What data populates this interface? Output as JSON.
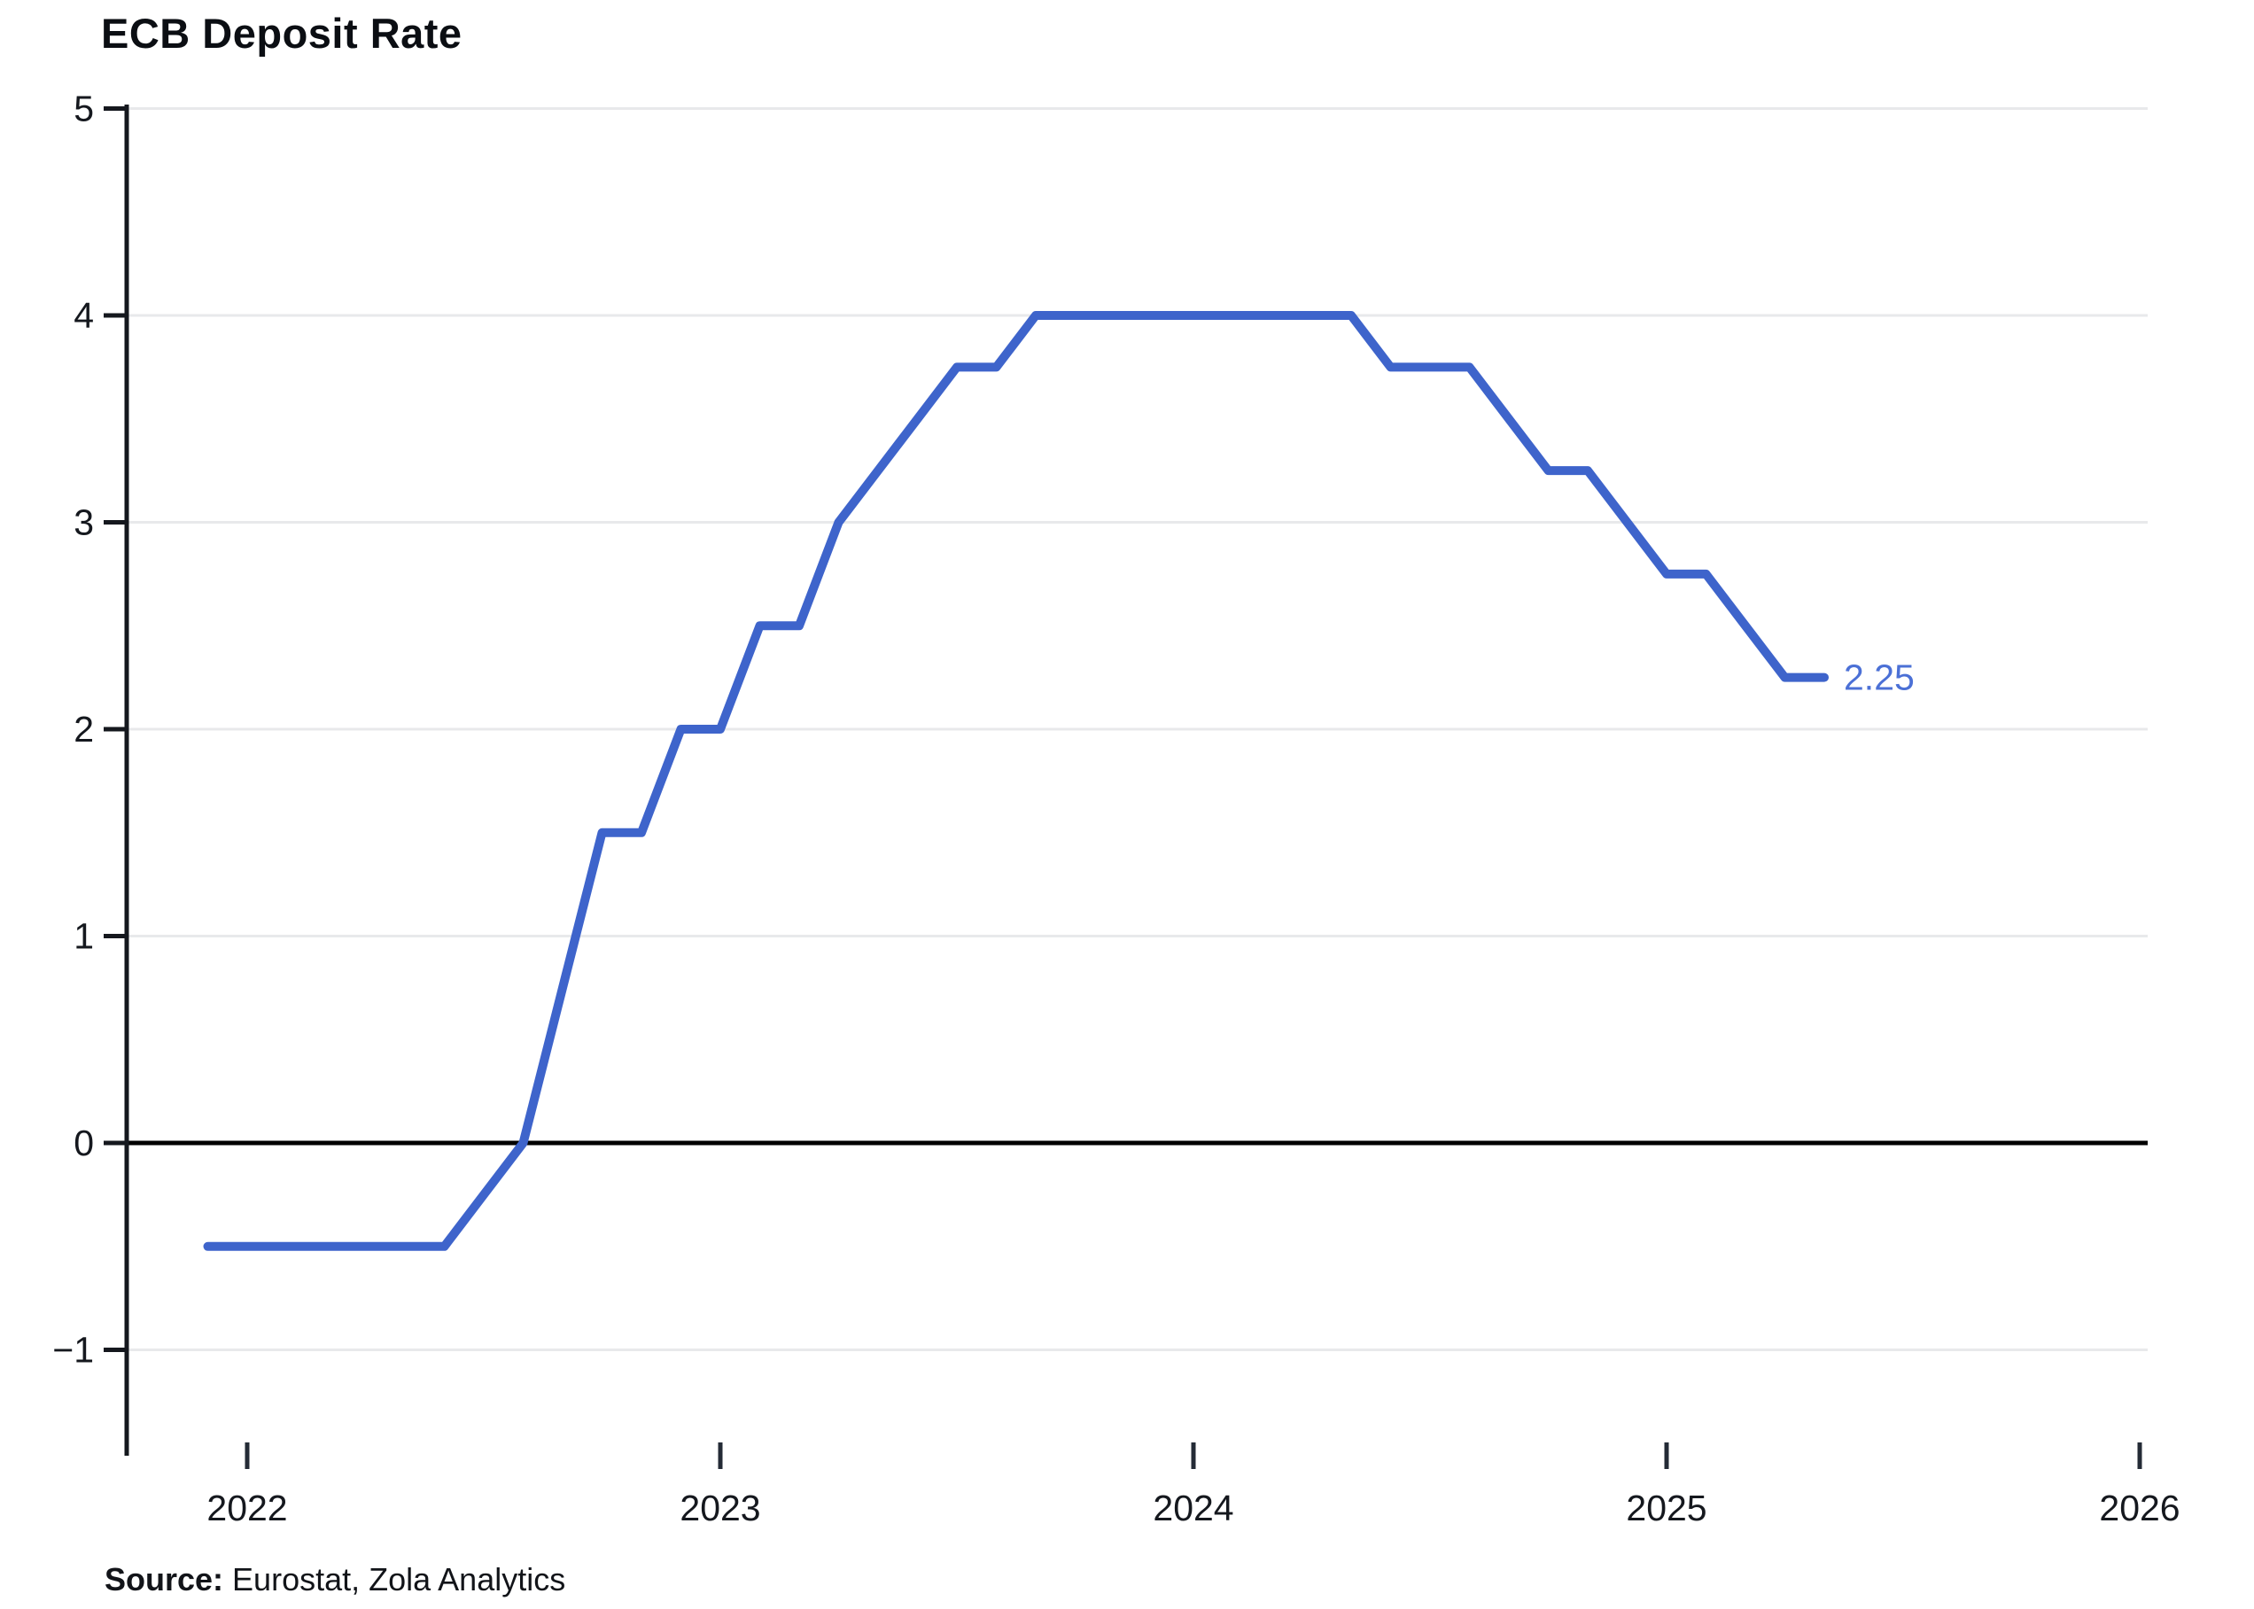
{
  "title": "ECB Deposit Rate",
  "source": {
    "label": "Source:",
    "text": "Eurostat, Zola Analytics"
  },
  "colors": {
    "line": "#3e64cb",
    "end_label": "#4b70d6",
    "grid": "#e8e9eb",
    "zero_line": "#000000",
    "axis": "#15181e",
    "x_tick": "#242b36",
    "text": "#15181e"
  },
  "chart_data": {
    "type": "line",
    "title": "ECB Deposit Rate",
    "xlabel": "",
    "ylabel": "",
    "ylim": [
      -1.5,
      5
    ],
    "xlim_years": [
      2021.75,
      2026.25
    ],
    "yticks": [
      5,
      4,
      3,
      2,
      1,
      0,
      -1
    ],
    "xticks": [
      "2022",
      "2023",
      "2024",
      "2025",
      "2026"
    ],
    "grid": "horizontal",
    "legend_position": "none",
    "end_label": "2.25",
    "series": [
      {
        "name": "ECB Deposit Rate",
        "x": [
          "2021-12",
          "2022-01",
          "2022-02",
          "2022-03",
          "2022-04",
          "2022-05",
          "2022-06",
          "2022-07",
          "2022-08",
          "2022-09",
          "2022-10",
          "2022-11",
          "2022-12",
          "2023-01",
          "2023-02",
          "2023-03",
          "2023-04",
          "2023-05",
          "2023-06",
          "2023-07",
          "2023-08",
          "2023-09",
          "2023-10",
          "2023-11",
          "2023-12",
          "2024-01",
          "2024-02",
          "2024-03",
          "2024-04",
          "2024-05",
          "2024-06",
          "2024-07",
          "2024-08",
          "2024-09",
          "2024-10",
          "2024-11",
          "2024-12",
          "2025-01",
          "2025-02",
          "2025-03",
          "2025-04",
          "2025-05"
        ],
        "values": [
          -0.5,
          -0.5,
          -0.5,
          -0.5,
          -0.5,
          -0.5,
          -0.5,
          -0.25,
          0,
          0.75,
          1.5,
          1.5,
          2,
          2,
          2.5,
          2.5,
          3,
          3.25,
          3.5,
          3.75,
          3.75,
          4,
          4,
          4,
          4,
          4,
          4,
          4,
          4,
          4,
          3.75,
          3.75,
          3.75,
          3.5,
          3.25,
          3.25,
          3,
          2.75,
          2.75,
          2.5,
          2.25,
          2.25
        ]
      }
    ]
  }
}
